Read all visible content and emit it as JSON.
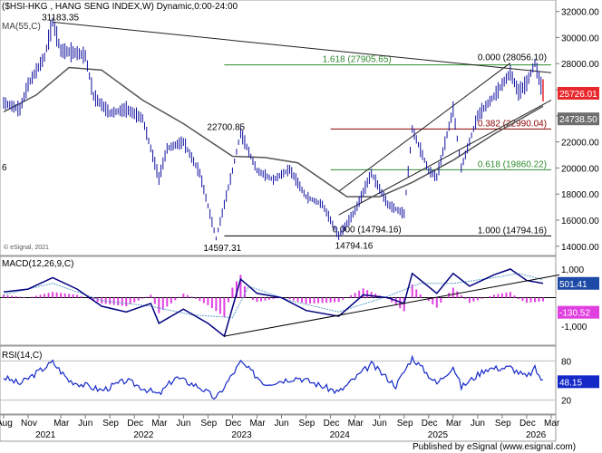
{
  "chart_data": [
    {
      "type": "candlestick",
      "title": "($HSI-HKG , HANG SENG INDEX,W) Dynamic,0:00-24:00",
      "overlay_label": "MA(55,C)",
      "copyright": "© eSignal, 2021",
      "y_ticks": [
        "32000.00",
        "30000.00",
        "28000.00",
        "26000.00",
        "24000.00",
        "22000.00",
        "20000.00",
        "18000.00",
        "16000.00",
        "14000.00"
      ],
      "ylim": [
        13500,
        32600
      ],
      "last_price": "25726.01",
      "ma_value": "24738.50",
      "partial_left_label": "6",
      "price_path": [
        {
          "t": "2020-08",
          "v": 25000
        },
        {
          "t": "2020-10",
          "v": 24500
        },
        {
          "t": "2020-11",
          "v": 26400
        },
        {
          "t": "2021-01",
          "v": 28500
        },
        {
          "t": "2021-02",
          "v": 31183
        },
        {
          "t": "2021-03",
          "v": 29000
        },
        {
          "t": "2021-05",
          "v": 28800
        },
        {
          "t": "2021-06",
          "v": 28600
        },
        {
          "t": "2021-07",
          "v": 25500
        },
        {
          "t": "2021-09",
          "v": 24200
        },
        {
          "t": "2021-11",
          "v": 24500
        },
        {
          "t": "2022-01",
          "v": 23800
        },
        {
          "t": "2022-03",
          "v": 19200
        },
        {
          "t": "2022-04",
          "v": 21500
        },
        {
          "t": "2022-06",
          "v": 22000
        },
        {
          "t": "2022-08",
          "v": 19600
        },
        {
          "t": "2022-10",
          "v": 14597
        },
        {
          "t": "2022-12",
          "v": 19800
        },
        {
          "t": "2023-01",
          "v": 22700
        },
        {
          "t": "2023-03",
          "v": 19800
        },
        {
          "t": "2023-05",
          "v": 19100
        },
        {
          "t": "2023-07",
          "v": 19900
        },
        {
          "t": "2023-09",
          "v": 17800
        },
        {
          "t": "2023-11",
          "v": 17200
        },
        {
          "t": "2024-01",
          "v": 14794
        },
        {
          "t": "2024-03",
          "v": 16700
        },
        {
          "t": "2024-05",
          "v": 19600
        },
        {
          "t": "2024-07",
          "v": 17200
        },
        {
          "t": "2024-09",
          "v": 16500
        },
        {
          "t": "2024-10",
          "v": 22990
        },
        {
          "t": "2024-12",
          "v": 19800
        },
        {
          "t": "2025-01",
          "v": 19300
        },
        {
          "t": "2025-03",
          "v": 24500
        },
        {
          "t": "2025-04",
          "v": 20000
        },
        {
          "t": "2025-06",
          "v": 24000
        },
        {
          "t": "2025-08",
          "v": 25500
        },
        {
          "t": "2025-10",
          "v": 27300
        },
        {
          "t": "2025-11",
          "v": 25800
        },
        {
          "t": "2025-12",
          "v": 26500
        },
        {
          "t": "2026-01",
          "v": 28056
        },
        {
          "t": "2026-02",
          "v": 25726
        }
      ],
      "ma_path": [
        {
          "t": "2020-08",
          "v": 24300
        },
        {
          "t": "2020-12",
          "v": 25600
        },
        {
          "t": "2021-04",
          "v": 27700
        },
        {
          "t": "2021-08",
          "v": 27500
        },
        {
          "t": "2022-01",
          "v": 25200
        },
        {
          "t": "2022-06",
          "v": 23400
        },
        {
          "t": "2022-12",
          "v": 20900
        },
        {
          "t": "2023-04",
          "v": 20800
        },
        {
          "t": "2023-08",
          "v": 20400
        },
        {
          "t": "2024-02",
          "v": 17800
        },
        {
          "t": "2024-06",
          "v": 17800
        },
        {
          "t": "2024-10",
          "v": 18900
        },
        {
          "t": "2025-03",
          "v": 20600
        },
        {
          "t": "2025-08",
          "v": 22600
        },
        {
          "t": "2026-02",
          "v": 24738
        }
      ],
      "fib_levels": [
        {
          "label": "1.618 (27905.65)",
          "value": 27905.65,
          "color": "#2e8b2e"
        },
        {
          "label": "0.000 (28056.10)",
          "value": 28056.1,
          "color": "#000000"
        },
        {
          "label": "0.382 (22990.04)",
          "value": 22990.04,
          "color": "#8b0000"
        },
        {
          "label": "0.618 (19860.22)",
          "value": 19860.22,
          "color": "#2e8b2e"
        },
        {
          "label": "1.000 (14794.16)",
          "value": 14794.16,
          "color": "#000000"
        }
      ],
      "fib_left_label": "0.000 (14794.16)",
      "annotations": [
        "31183.35",
        "22700.85",
        "14597.31",
        "14794.16"
      ]
    },
    {
      "type": "macd",
      "label": "MACD(12,26,9,C)",
      "y_ticks": [
        "1,000",
        "500",
        "-1,000"
      ],
      "ylim": [
        -1600,
        1350
      ],
      "values": [
        "501.41",
        "-130.52"
      ],
      "macd_path": [
        {
          "t": "2020-08",
          "v": 200
        },
        {
          "t": "2020-11",
          "v": 300
        },
        {
          "t": "2021-02",
          "v": 700
        },
        {
          "t": "2021-05",
          "v": 300
        },
        {
          "t": "2021-08",
          "v": -300
        },
        {
          "t": "2021-11",
          "v": -500
        },
        {
          "t": "2022-02",
          "v": -200
        },
        {
          "t": "2022-03",
          "v": -900
        },
        {
          "t": "2022-06",
          "v": -400
        },
        {
          "t": "2022-09",
          "v": -900
        },
        {
          "t": "2022-11",
          "v": -1350
        },
        {
          "t": "2023-01",
          "v": 650
        },
        {
          "t": "2023-03",
          "v": 150
        },
        {
          "t": "2023-06",
          "v": 0
        },
        {
          "t": "2023-09",
          "v": -450
        },
        {
          "t": "2024-01",
          "v": -650
        },
        {
          "t": "2024-04",
          "v": 100
        },
        {
          "t": "2024-07",
          "v": 0
        },
        {
          "t": "2024-09",
          "v": -200
        },
        {
          "t": "2024-10",
          "v": 850
        },
        {
          "t": "2025-01",
          "v": 150
        },
        {
          "t": "2025-03",
          "v": 850
        },
        {
          "t": "2025-05",
          "v": 400
        },
        {
          "t": "2025-08",
          "v": 800
        },
        {
          "t": "2025-10",
          "v": 1000
        },
        {
          "t": "2025-12",
          "v": 600
        },
        {
          "t": "2026-02",
          "v": 501
        }
      ],
      "signal_path": [
        {
          "t": "2020-08",
          "v": 100
        },
        {
          "t": "2021-02",
          "v": 500
        },
        {
          "t": "2021-08",
          "v": -100
        },
        {
          "t": "2022-02",
          "v": -300
        },
        {
          "t": "2022-07",
          "v": -600
        },
        {
          "t": "2022-12",
          "v": -700
        },
        {
          "t": "2023-02",
          "v": 400
        },
        {
          "t": "2023-07",
          "v": -100
        },
        {
          "t": "2024-01",
          "v": -500
        },
        {
          "t": "2024-07",
          "v": 50
        },
        {
          "t": "2024-11",
          "v": 500
        },
        {
          "t": "2025-03",
          "v": 500
        },
        {
          "t": "2025-08",
          "v": 700
        },
        {
          "t": "2025-11",
          "v": 850
        },
        {
          "t": "2026-02",
          "v": 630
        }
      ]
    },
    {
      "type": "line",
      "label": "RSI(14,C)",
      "y_ticks": [
        "80",
        "20"
      ],
      "ylim": [
        0,
        100
      ],
      "value": "48.15",
      "rsi_path": [
        {
          "t": "2020-08",
          "v": 55
        },
        {
          "t": "2020-10",
          "v": 45
        },
        {
          "t": "2021-02",
          "v": 78
        },
        {
          "t": "2021-04",
          "v": 50
        },
        {
          "t": "2021-08",
          "v": 35
        },
        {
          "t": "2021-11",
          "v": 50
        },
        {
          "t": "2022-03",
          "v": 28
        },
        {
          "t": "2022-05",
          "v": 55
        },
        {
          "t": "2022-08",
          "v": 40
        },
        {
          "t": "2022-10",
          "v": 22
        },
        {
          "t": "2023-01",
          "v": 78
        },
        {
          "t": "2023-04",
          "v": 45
        },
        {
          "t": "2023-08",
          "v": 55
        },
        {
          "t": "2024-01",
          "v": 32
        },
        {
          "t": "2024-05",
          "v": 75
        },
        {
          "t": "2024-08",
          "v": 42
        },
        {
          "t": "2024-10",
          "v": 85
        },
        {
          "t": "2025-01",
          "v": 45
        },
        {
          "t": "2025-03",
          "v": 72
        },
        {
          "t": "2025-04",
          "v": 40
        },
        {
          "t": "2025-07",
          "v": 68
        },
        {
          "t": "2025-10",
          "v": 70
        },
        {
          "t": "2025-12",
          "v": 55
        },
        {
          "t": "2026-01",
          "v": 68
        },
        {
          "t": "2026-02",
          "v": 48.15
        }
      ]
    }
  ],
  "time_axis": {
    "range": [
      "2020-08",
      "2026-03"
    ],
    "months": [
      {
        "label": "Aug",
        "t": "2020-08"
      },
      {
        "label": "Nov",
        "t": "2020-11"
      },
      {
        "label": "Mar",
        "t": "2021-03"
      },
      {
        "label": "Jun",
        "t": "2021-06"
      },
      {
        "label": "Sep",
        "t": "2021-09"
      },
      {
        "label": "Dec",
        "t": "2021-12"
      },
      {
        "label": "Mar",
        "t": "2022-03"
      },
      {
        "label": "Jun",
        "t": "2022-06"
      },
      {
        "label": "Sep",
        "t": "2022-09"
      },
      {
        "label": "Dec",
        "t": "2022-12"
      },
      {
        "label": "Mar",
        "t": "2023-03"
      },
      {
        "label": "Jun",
        "t": "2023-06"
      },
      {
        "label": "Sep",
        "t": "2023-09"
      },
      {
        "label": "Dec",
        "t": "2023-12"
      },
      {
        "label": "Mar",
        "t": "2024-03"
      },
      {
        "label": "Jun",
        "t": "2024-06"
      },
      {
        "label": "Sep",
        "t": "2024-09"
      },
      {
        "label": "Dec",
        "t": "2024-12"
      },
      {
        "label": "Mar",
        "t": "2025-03"
      },
      {
        "label": "Jun",
        "t": "2025-06"
      },
      {
        "label": "Sep",
        "t": "2025-09"
      },
      {
        "label": "Dec",
        "t": "2025-12"
      },
      {
        "label": "Mar",
        "t": "2026-03"
      }
    ],
    "years": [
      {
        "label": "2021",
        "t": "2021-01"
      },
      {
        "label": "2022",
        "t": "2022-01"
      },
      {
        "label": "2023",
        "t": "2023-01"
      },
      {
        "label": "2024",
        "t": "2024-01"
      },
      {
        "label": "2025",
        "t": "2025-01"
      },
      {
        "label": "2026",
        "t": "2026-01"
      }
    ]
  },
  "footer": "Published by eSignal (www.esignal.com)",
  "colors": {
    "price": "#1010a0",
    "ma": "#555555",
    "macd": "#000080",
    "signal": "#5fa0c8",
    "hist": "#e040e0",
    "rsi": "#1428c8",
    "fib_green": "#2e8b2e",
    "fib_red": "#8b0000",
    "last_price_bg": "#e8282c",
    "ma_bg": "#6e6e6e",
    "macd_bg": "#1d4aa6",
    "hist_bg": "#e040e0"
  }
}
